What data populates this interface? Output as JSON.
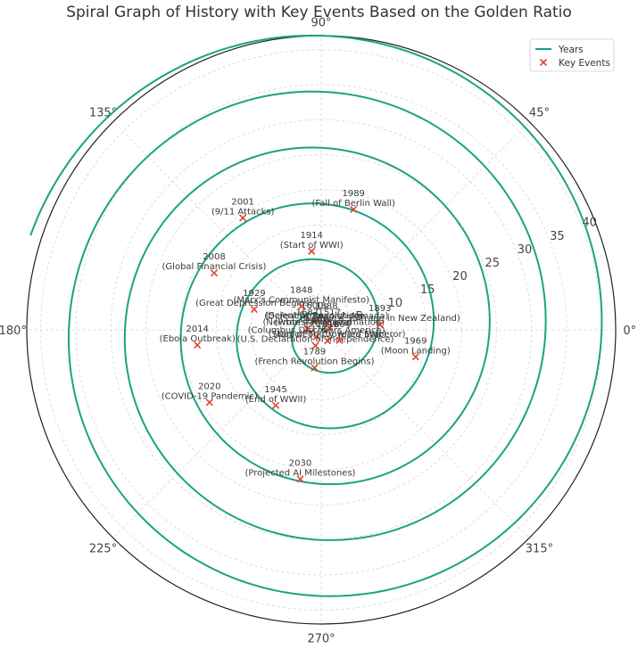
{
  "chart_data": {
    "type": "line",
    "projection": "polar",
    "title": "Spiral Graph of History with Key Events Based on the Golden Ratio",
    "angle_ticks": [
      "0°",
      "45°",
      "90°",
      "135°",
      "180°",
      "225°",
      "270°",
      "315°"
    ],
    "angle_tick_values": [
      0,
      45,
      90,
      135,
      180,
      225,
      270,
      315
    ],
    "radial_ticks": [
      5,
      10,
      15,
      20,
      25,
      30,
      35,
      40
    ],
    "rlim": [
      0,
      42
    ],
    "grid": true,
    "legend": {
      "position": "top-right",
      "entries": [
        {
          "label": "Years",
          "marker": "line",
          "color": "#1aa383"
        },
        {
          "label": "Key Events",
          "marker": "x",
          "color": "#e0442a"
        }
      ]
    },
    "series": [
      {
        "name": "Years",
        "color": "#1aa383",
        "curve": "archimedean spiral",
        "r_per_turn": 8.0,
        "theta_start_deg": 0,
        "theta_end_deg": 1962
      }
    ],
    "events": [
      {
        "year": "1588",
        "label": "(Defeat of Spanish Armada)",
        "r": 1.3,
        "theta": 55
      },
      {
        "year": "1600s",
        "label": "(Scientific Revolution)",
        "r": 1.5,
        "theta": 130
      },
      {
        "year": "1517",
        "label": "(Protestant Reformation)",
        "r": 1.2,
        "theta": 10
      },
      {
        "year": "1492",
        "label": "(Columbus Discovers America)",
        "r": 1.2,
        "theta": 235
      },
      {
        "year": "1687",
        "label": "(Newton's Principia)",
        "r": 2.0,
        "theta": 175
      },
      {
        "year": "1848",
        "label": "(Marx's Communist Manifesto)",
        "r": 4.4,
        "theta": 130
      },
      {
        "year": "1618",
        "label": "(Start of Thirty Years' War)",
        "r": 1.8,
        "theta": 300
      },
      {
        "year": "1776",
        "label": "(U.S. Declaration of Independence)",
        "r": 2.4,
        "theta": 250
      },
      {
        "year": "1804",
        "label": "(Napoleon Crowned Emperor)",
        "r": 3.0,
        "theta": 330
      },
      {
        "year": "1789",
        "label": "(French Revolution Begins)",
        "r": 5.5,
        "theta": 260
      },
      {
        "year": "1893",
        "label": "(Women's Suffrage in New Zealand)",
        "r": 8.4,
        "theta": 5
      },
      {
        "year": "1914",
        "label": "(Start of WWI)",
        "r": 11.3,
        "theta": 97
      },
      {
        "year": "1929",
        "label": "(Great Depression Begins)",
        "r": 10.0,
        "theta": 163
      },
      {
        "year": "1945",
        "label": "(End of WWII)",
        "r": 12.6,
        "theta": 239
      },
      {
        "year": "1969",
        "label": "(Moon Landing)",
        "r": 14.0,
        "theta": 344
      },
      {
        "year": "1989",
        "label": "(Fall of Berlin Wall)",
        "r": 17.8,
        "theta": 75
      },
      {
        "year": "2001",
        "label": "(9/11 Attacks)",
        "r": 19.5,
        "theta": 125
      },
      {
        "year": "2008",
        "label": "(Global Financial Crisis)",
        "r": 17.3,
        "theta": 152
      },
      {
        "year": "2014",
        "label": "(Ebola Outbreak)",
        "r": 17.8,
        "theta": 187
      },
      {
        "year": "2020",
        "label": "(COVID-19 Pandemic)",
        "r": 19.0,
        "theta": 213
      },
      {
        "year": "2030",
        "label": "(Projected AI Milestones)",
        "r": 21.5,
        "theta": 262
      }
    ]
  }
}
